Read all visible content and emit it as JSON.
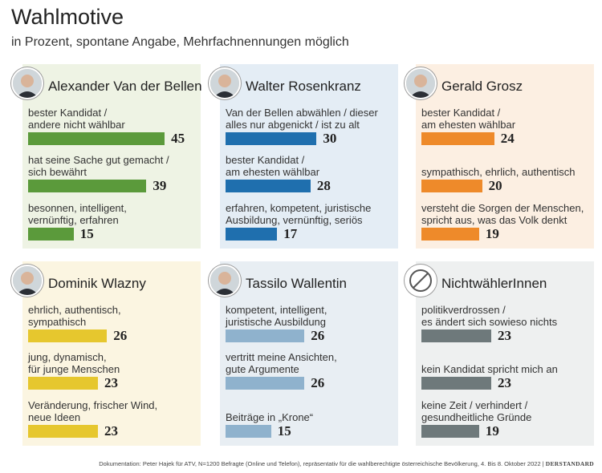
{
  "title": "Wahlmotive",
  "subtitle": "in Prozent, spontane Angabe, Mehrfachnennungen möglich",
  "source": "Dokumentation: Peter Hajek für ATV, N=1200 Befragte (Online und Telefon), repräsentativ für die wahlberechtigte österreichische Bevölkerung, 4. Bis 8. Oktober 2022",
  "brand": "DERSTANDARD",
  "chart_data": [
    {
      "type": "bar",
      "title": "Alexander Van der Bellen",
      "color": "#5b9a3b",
      "background": "#eef3e4",
      "categories": [
        "bester Kandidat /\nandere nicht wählbar",
        "hat seine Sache gut gemacht /\nsich bewährt",
        "besonnen, intelligent,\nvernünftig, erfahren"
      ],
      "values": [
        45,
        39,
        15
      ]
    },
    {
      "type": "bar",
      "title": "Walter Rosenkranz",
      "color": "#1f6fae",
      "background": "#e4edf5",
      "categories": [
        "Van der Bellen abwählen / dieser\nalles nur abgenickt / ist zu alt",
        "bester Kandidat /\nam ehesten wählbar",
        "erfahren, kompetent, juristische\nAusbildung, vernünftig, seriös"
      ],
      "values": [
        30,
        28,
        17
      ]
    },
    {
      "type": "bar",
      "title": "Gerald Grosz",
      "color": "#ee8a2a",
      "background": "#fcefe2",
      "categories": [
        "bester Kandidat /\nam ehesten wählbar",
        "sympathisch, ehrlich, authentisch",
        "versteht die Sorgen der Menschen,\nspricht aus, was das Volk denkt"
      ],
      "values": [
        24,
        20,
        19
      ]
    },
    {
      "type": "bar",
      "title": "Dominik Wlazny",
      "color": "#e6c72e",
      "background": "#fbf5e1",
      "categories": [
        "ehrlich, authentisch,\nsympathisch",
        "jung, dynamisch,\nfür junge Menschen",
        "Veränderung, frischer Wind,\nneue Ideen"
      ],
      "values": [
        26,
        23,
        23
      ]
    },
    {
      "type": "bar",
      "title": "Tassilo Wallentin",
      "color": "#8fb2cd",
      "background": "#e8eef3",
      "categories": [
        "kompetent, intelligent,\njuristische Ausbildung",
        "vertritt meine Ansichten,\ngute Argumente",
        "Beiträge in „Krone“"
      ],
      "values": [
        26,
        26,
        15
      ]
    },
    {
      "type": "bar",
      "title": "NichtwählerInnen",
      "color": "#6e797b",
      "background": "#eef0f0",
      "categories": [
        "politikverdrossen /\nes ändert sich sowieso nichts",
        "kein Kandidat spricht mich an",
        "keine Zeit / verhindert /\ngesundheitliche Gründe"
      ],
      "values": [
        23,
        23,
        19
      ]
    }
  ]
}
